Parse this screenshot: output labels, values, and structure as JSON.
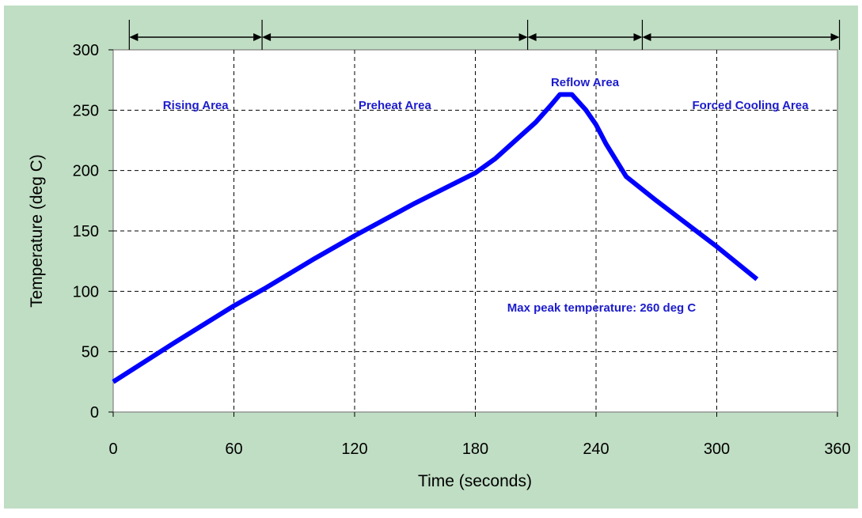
{
  "chart_data": {
    "type": "line",
    "title": "",
    "xlabel": "Time (seconds)",
    "ylabel": "Temperature (deg C)",
    "xlim": [
      0,
      360
    ],
    "ylim": [
      0,
      300
    ],
    "xticks": [
      0,
      60,
      120,
      180,
      240,
      300,
      360
    ],
    "yticks": [
      0,
      50,
      100,
      150,
      200,
      250,
      300
    ],
    "grid": true,
    "legend": "none",
    "series": [
      {
        "color": "#0000ff",
        "x": [
          0,
          30,
          60,
          75,
          100,
          120,
          150,
          180,
          190,
          200,
          210,
          218,
          222,
          228,
          235,
          240,
          245,
          255,
          270,
          300,
          320
        ],
        "y": [
          25,
          57,
          88,
          102,
          127,
          146,
          173,
          198,
          210,
          225,
          240,
          255,
          263,
          263,
          250,
          238,
          222,
          195,
          175,
          137,
          110
        ]
      }
    ],
    "regions": [
      {
        "label": "Rising Area",
        "x_start": 8,
        "x_end": 74
      },
      {
        "label": "Preheat Area",
        "x_start": 74,
        "x_end": 206
      },
      {
        "label": "Reflow Area",
        "x_start": 206,
        "x_end": 263
      },
      {
        "label": "Forced Cooling Area",
        "x_start": 263,
        "x_end": 361
      }
    ],
    "annotation": "Max peak temperature: 260 deg C",
    "colors": {
      "background": "#c0dec4",
      "plot_area": "#ffffff",
      "line": "#0000ff",
      "label_text": "#1c1ccc"
    }
  }
}
